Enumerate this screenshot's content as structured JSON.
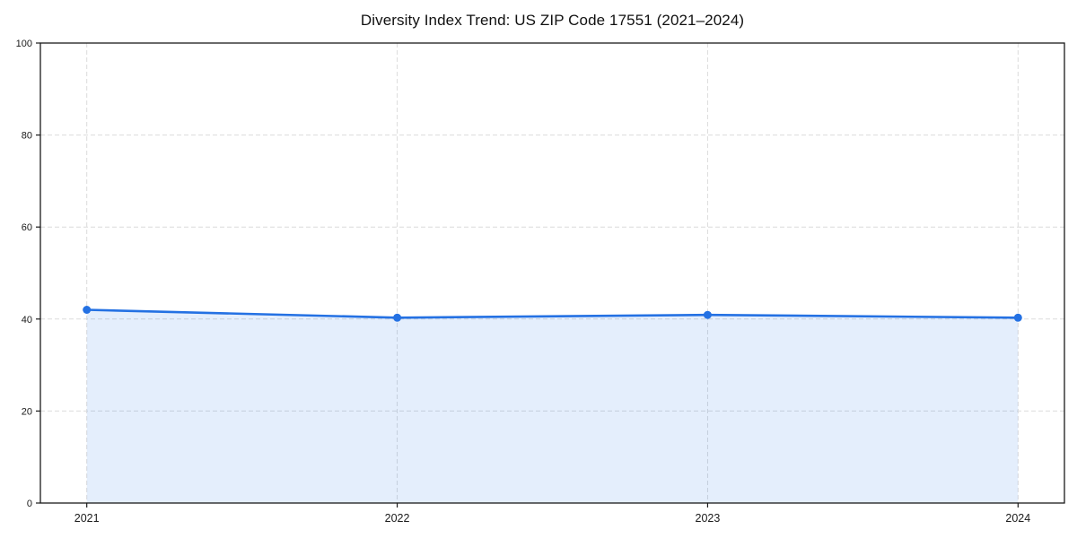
{
  "chart_data": {
    "type": "line",
    "title": "Diversity Index Trend: US ZIP Code 17551 (2021–2024)",
    "categories": [
      "2021",
      "2022",
      "2023",
      "2024"
    ],
    "series": [
      {
        "name": "Diversity Index",
        "values": [
          42.0,
          40.3,
          40.9,
          40.3
        ]
      }
    ],
    "xlabel": "",
    "ylabel": "",
    "ylim": [
      0,
      100
    ],
    "yticks": [
      0,
      20,
      40,
      60,
      80,
      100
    ],
    "grid": {
      "visible": true,
      "style": "dashed",
      "color": "#dcdcdc"
    },
    "legend": {
      "position": "none"
    },
    "area_fill": true,
    "marker": "circle",
    "colors": {
      "line": "#2471e3",
      "fill": "rgba(36, 113, 227, 0.12)",
      "axis": "#1a1a1a",
      "tick_text": "#1a1a1a",
      "title_text": "#111111",
      "background": "#ffffff"
    }
  }
}
